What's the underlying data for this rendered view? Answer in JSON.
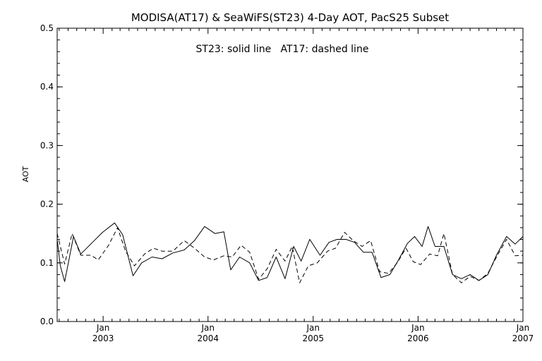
{
  "chart_data": {
    "type": "line",
    "title": "MODISA(AT17) & SeaWiFS(ST23) 4-Day AOT, PacS25 Subset",
    "annotation": "ST23: solid line   AT17: dashed line",
    "xlabel": "",
    "ylabel": "AOT",
    "xlim": [
      "2002-07-25",
      "2007-01-01"
    ],
    "ylim": [
      0.0,
      0.5
    ],
    "y_ticks": [
      "0.0",
      "0.1",
      "0.2",
      "0.3",
      "0.4",
      "0.5"
    ],
    "x_ticks": [
      {
        "month": "Jan",
        "year": "2003",
        "date": "2003-01-01"
      },
      {
        "month": "Jan",
        "year": "2004",
        "date": "2004-01-01"
      },
      {
        "month": "Jan",
        "year": "2005",
        "date": "2005-01-01"
      },
      {
        "month": "Jan",
        "year": "2006",
        "date": "2006-01-01"
      },
      {
        "month": "Jan",
        "year": "2007",
        "date": "2007-01-01"
      }
    ],
    "grid": false,
    "colors": {
      "line": "#000000",
      "background": "#ffffff"
    },
    "series": [
      {
        "name": "ST23",
        "style": "solid",
        "points": [
          [
            "2002-07-25",
            0.14
          ],
          [
            "2002-08-05",
            0.095
          ],
          [
            "2002-08-20",
            0.068
          ],
          [
            "2002-09-20",
            0.145
          ],
          [
            "2002-10-15",
            0.115
          ],
          [
            "2002-11-25",
            0.135
          ],
          [
            "2002-12-30",
            0.152
          ],
          [
            "2003-02-10",
            0.168
          ],
          [
            "2003-03-10",
            0.148
          ],
          [
            "2003-04-15",
            0.078
          ],
          [
            "2003-05-15",
            0.1
          ],
          [
            "2003-06-20",
            0.11
          ],
          [
            "2003-07-25",
            0.107
          ],
          [
            "2003-09-01",
            0.117
          ],
          [
            "2003-10-10",
            0.122
          ],
          [
            "2003-11-15",
            0.138
          ],
          [
            "2003-12-20",
            0.162
          ],
          [
            "2004-01-25",
            0.15
          ],
          [
            "2004-02-25",
            0.153
          ],
          [
            "2004-03-20",
            0.088
          ],
          [
            "2004-04-20",
            0.11
          ],
          [
            "2004-05-25",
            0.1
          ],
          [
            "2004-06-25",
            0.07
          ],
          [
            "2004-07-25",
            0.075
          ],
          [
            "2004-08-25",
            0.11
          ],
          [
            "2004-09-25",
            0.073
          ],
          [
            "2004-10-25",
            0.128
          ],
          [
            "2004-11-20",
            0.103
          ],
          [
            "2004-12-20",
            0.14
          ],
          [
            "2005-01-25",
            0.113
          ],
          [
            "2005-02-25",
            0.135
          ],
          [
            "2005-03-25",
            0.14
          ],
          [
            "2005-04-25",
            0.14
          ],
          [
            "2005-05-25",
            0.135
          ],
          [
            "2005-06-25",
            0.118
          ],
          [
            "2005-07-25",
            0.118
          ],
          [
            "2005-08-25",
            0.075
          ],
          [
            "2005-09-25",
            0.08
          ],
          [
            "2005-10-25",
            0.105
          ],
          [
            "2005-11-25",
            0.133
          ],
          [
            "2005-12-20",
            0.145
          ],
          [
            "2006-01-15",
            0.128
          ],
          [
            "2006-02-05",
            0.162
          ],
          [
            "2006-03-01",
            0.128
          ],
          [
            "2006-04-01",
            0.128
          ],
          [
            "2006-05-01",
            0.08
          ],
          [
            "2006-06-01",
            0.073
          ],
          [
            "2006-07-01",
            0.08
          ],
          [
            "2006-08-01",
            0.07
          ],
          [
            "2006-09-01",
            0.08
          ],
          [
            "2006-10-01",
            0.113
          ],
          [
            "2006-11-05",
            0.145
          ],
          [
            "2006-12-05",
            0.132
          ],
          [
            "2007-01-01",
            0.145
          ]
        ]
      },
      {
        "name": "AT17",
        "style": "dashed",
        "points": [
          [
            "2002-07-25",
            0.15
          ],
          [
            "2002-08-20",
            0.098
          ],
          [
            "2002-09-15",
            0.15
          ],
          [
            "2002-10-15",
            0.113
          ],
          [
            "2002-11-20",
            0.113
          ],
          [
            "2002-12-15",
            0.105
          ],
          [
            "2003-01-20",
            0.13
          ],
          [
            "2003-02-20",
            0.16
          ],
          [
            "2003-03-20",
            0.12
          ],
          [
            "2003-04-20",
            0.095
          ],
          [
            "2003-05-25",
            0.115
          ],
          [
            "2003-06-25",
            0.125
          ],
          [
            "2003-07-25",
            0.12
          ],
          [
            "2003-09-01",
            0.12
          ],
          [
            "2003-10-10",
            0.138
          ],
          [
            "2003-11-15",
            0.125
          ],
          [
            "2003-12-20",
            0.11
          ],
          [
            "2004-01-20",
            0.105
          ],
          [
            "2004-02-25",
            0.112
          ],
          [
            "2004-03-25",
            0.11
          ],
          [
            "2004-04-25",
            0.13
          ],
          [
            "2004-05-25",
            0.118
          ],
          [
            "2004-06-25",
            0.072
          ],
          [
            "2004-07-25",
            0.09
          ],
          [
            "2004-08-25",
            0.123
          ],
          [
            "2004-09-25",
            0.103
          ],
          [
            "2004-10-20",
            0.128
          ],
          [
            "2004-11-15",
            0.066
          ],
          [
            "2004-12-15",
            0.095
          ],
          [
            "2005-01-15",
            0.1
          ],
          [
            "2005-02-20",
            0.12
          ],
          [
            "2005-03-20",
            0.125
          ],
          [
            "2005-04-20",
            0.152
          ],
          [
            "2005-05-20",
            0.138
          ],
          [
            "2005-06-20",
            0.128
          ],
          [
            "2005-07-20",
            0.138
          ],
          [
            "2005-08-20",
            0.085
          ],
          [
            "2005-09-20",
            0.082
          ],
          [
            "2005-10-20",
            0.1
          ],
          [
            "2005-11-20",
            0.125
          ],
          [
            "2005-12-15",
            0.102
          ],
          [
            "2006-01-10",
            0.097
          ],
          [
            "2006-02-10",
            0.115
          ],
          [
            "2006-03-10",
            0.112
          ],
          [
            "2006-04-01",
            0.15
          ],
          [
            "2006-05-01",
            0.08
          ],
          [
            "2006-06-01",
            0.066
          ],
          [
            "2006-07-01",
            0.077
          ],
          [
            "2006-08-01",
            0.07
          ],
          [
            "2006-09-01",
            0.082
          ],
          [
            "2006-10-01",
            0.11
          ],
          [
            "2006-11-05",
            0.14
          ],
          [
            "2006-12-05",
            0.112
          ],
          [
            "2007-01-01",
            0.113
          ]
        ]
      }
    ]
  }
}
